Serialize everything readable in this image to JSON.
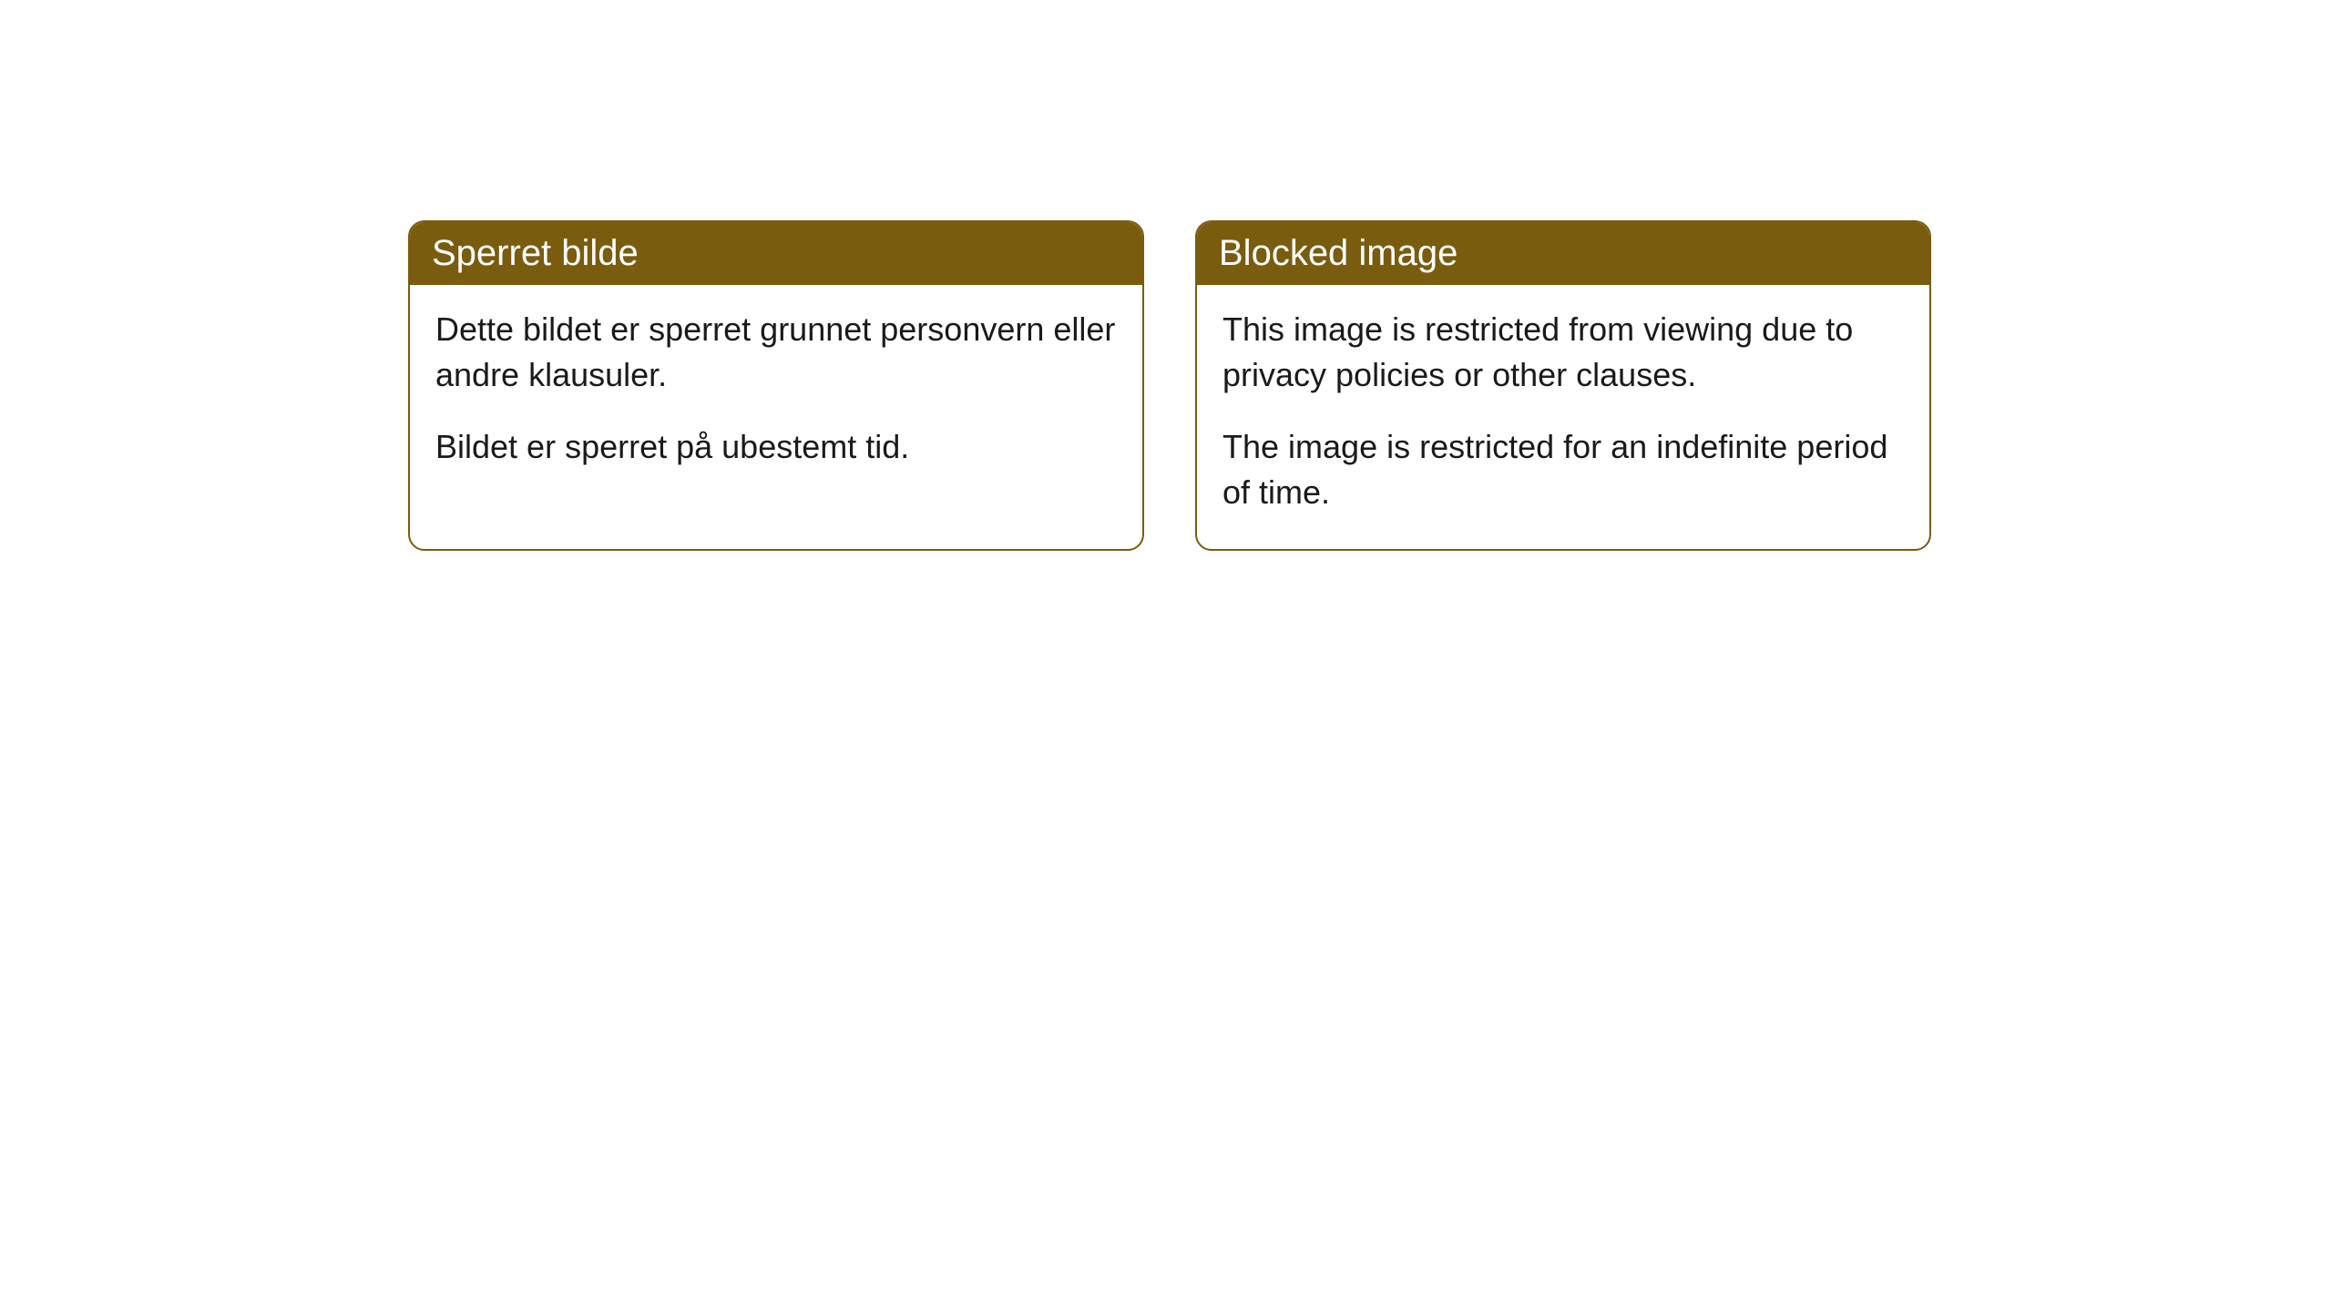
{
  "cards": [
    {
      "title": "Sperret bilde",
      "paragraph1": "Dette bildet er sperret grunnet personvern eller andre klausuler.",
      "paragraph2": "Bildet er sperret på ubestemt tid."
    },
    {
      "title": "Blocked image",
      "paragraph1": "This image is restricted from viewing due to privacy policies or other clauses.",
      "paragraph2": "The image is restricted for an indefinite period of time."
    }
  ],
  "styling": {
    "header_background": "#7a5c0f",
    "header_text_color": "#ffffff",
    "border_color": "#7a5c0f",
    "body_background": "#ffffff",
    "body_text_color": "#1a1a1a",
    "border_radius": 18,
    "title_fontsize": 40,
    "body_fontsize": 36
  }
}
